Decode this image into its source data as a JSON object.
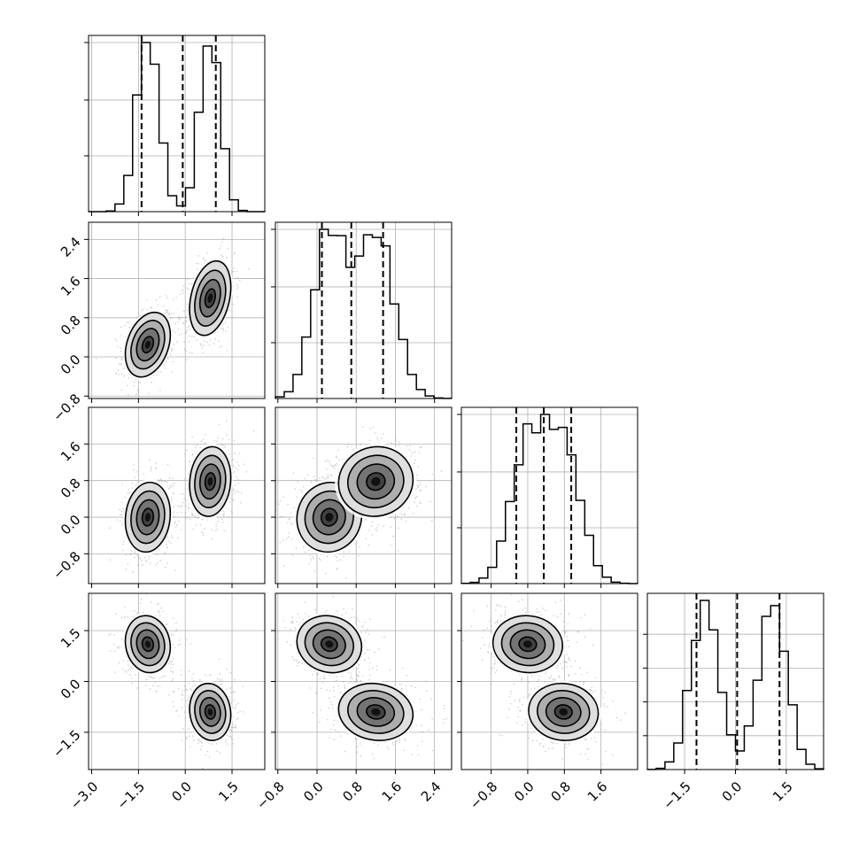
{
  "chart_data": {
    "type": "corner",
    "parameters": [
      {
        "index": 0,
        "ticks": [
          -3.0,
          -1.5,
          0.0,
          1.5
        ],
        "tick_labels": [
          "−3.0",
          "−1.5",
          "0.0",
          "1.5"
        ],
        "range": [
          -3.1,
          2.55
        ],
        "quantiles": [
          -1.4,
          -0.08,
          0.98
        ],
        "modes": [
          {
            "mean": -1.2,
            "sd": 0.36,
            "weight": 0.5
          },
          {
            "mean": 0.8,
            "sd": 0.33,
            "weight": 0.5
          }
        ],
        "histogram_max": 1.0,
        "yticks_hist": [
          0.33,
          0.66,
          1.0
        ]
      },
      {
        "index": 1,
        "ticks": [
          -0.8,
          0.0,
          0.8,
          1.6,
          2.4
        ],
        "tick_labels": [
          "−0.8",
          "0.0",
          "0.8",
          "1.6",
          "2.4"
        ],
        "range": [
          -0.85,
          2.75
        ],
        "quantiles": [
          0.1,
          0.7,
          1.35
        ],
        "modes": [
          {
            "mean": 0.25,
            "sd": 0.33,
            "weight": 0.5
          },
          {
            "mean": 1.2,
            "sd": 0.38,
            "weight": 0.5
          }
        ],
        "yticks_hist": [
          0.33,
          0.66,
          1.0
        ]
      },
      {
        "index": 2,
        "ticks": [
          -0.8,
          0.0,
          0.8,
          1.6
        ],
        "tick_labels": [
          "−0.8",
          "0.0",
          "0.8",
          "1.6"
        ],
        "range": [
          -1.45,
          2.4
        ],
        "quantiles": [
          -0.25,
          0.35,
          0.95
        ],
        "modes": [
          {
            "mean": 0.0,
            "sd": 0.38,
            "weight": 0.5
          },
          {
            "mean": 0.78,
            "sd": 0.38,
            "weight": 0.5
          }
        ],
        "yticks_hist": [
          0.33,
          0.66,
          1.0
        ]
      },
      {
        "index": 3,
        "ticks": [
          -1.5,
          0.0,
          1.5
        ],
        "tick_labels": [
          "−1.5",
          "0.0",
          "1.5"
        ],
        "range": [
          -2.6,
          2.6
        ],
        "quantiles": [
          -1.15,
          0.05,
          1.3
        ],
        "modes": [
          {
            "mean": 1.1,
            "sd": 0.42,
            "weight": 0.5
          },
          {
            "mean": -0.9,
            "sd": 0.42,
            "weight": 0.5
          }
        ],
        "yticks_hist": [
          0.2,
          0.4,
          0.6,
          0.8
        ]
      }
    ],
    "clusters": [
      {
        "name": "",
        "means": [
          -1.2,
          0.25,
          0.0,
          1.1
        ],
        "sds": [
          0.36,
          0.33,
          0.38,
          0.42
        ],
        "weight": 0.5
      },
      {
        "name": "",
        "means": [
          0.8,
          1.2,
          0.78,
          -0.9
        ],
        "sds": [
          0.33,
          0.38,
          0.38,
          0.42
        ],
        "weight": 0.5
      }
    ],
    "correlations": [
      {
        "pair": [
          0,
          1
        ],
        "within_cluster_rho": 0.3
      },
      {
        "pair": [
          0,
          2
        ],
        "within_cluster_rho": 0.1
      },
      {
        "pair": [
          0,
          3
        ],
        "within_cluster_rho": -0.1
      },
      {
        "pair": [
          1,
          2
        ],
        "within_cluster_rho": 0.05
      },
      {
        "pair": [
          1,
          3
        ],
        "within_cluster_rho": -0.1
      },
      {
        "pair": [
          2,
          3
        ],
        "within_cluster_rho": -0.05
      }
    ],
    "contour_levels_sigma": [
      0.5,
      1.0,
      1.5,
      2.0
    ],
    "grid": true,
    "quantile_line_style": "dashed",
    "title": "",
    "xlabel": "",
    "ylabel": ""
  }
}
